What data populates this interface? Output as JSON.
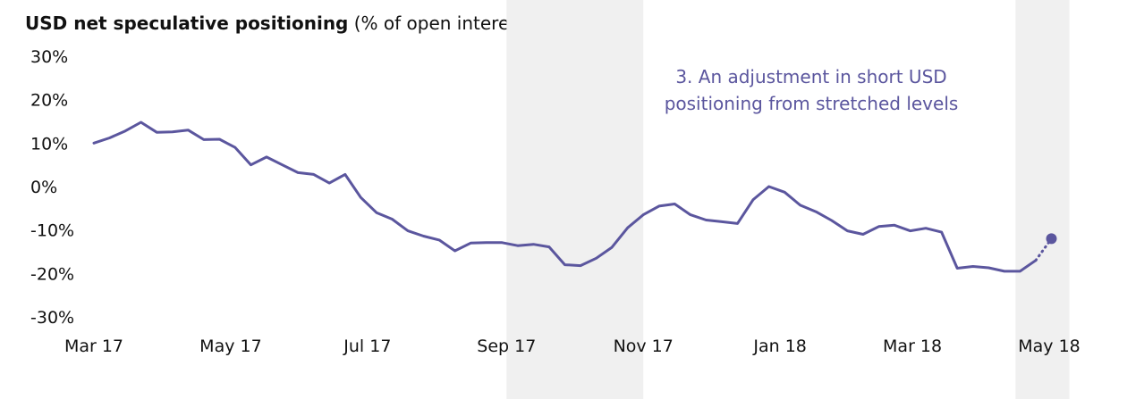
{
  "chart_data": {
    "type": "line",
    "title": "USD net speculative positioning",
    "subtitle": "(% of open interest)",
    "xlabel": "",
    "ylabel": "",
    "ylim": [
      -30,
      30
    ],
    "y_ticks": [
      "30%",
      "20%",
      "10%",
      "0%",
      "-10%",
      "-20%",
      "-30%"
    ],
    "x_ticks": [
      "Mar 17",
      "May 17",
      "Jul 17",
      "Sep 17",
      "Nov 17",
      "Jan 18",
      "Mar 18",
      "May 18"
    ],
    "grid": false,
    "shaded_periods": [
      {
        "start": "2017-09-01",
        "end": "2017-11-01"
      },
      {
        "start": "2018-04-16",
        "end": "2018-05-10"
      }
    ],
    "annotation": {
      "lines": [
        "3. An adjustment in short USD",
        "positioning from stretched levels"
      ]
    },
    "series": [
      {
        "values": [
          [
            "2017-03-01",
            10.0
          ],
          [
            "2017-03-08",
            11.2
          ],
          [
            "2017-03-15",
            12.8
          ],
          [
            "2017-03-22",
            14.8
          ],
          [
            "2017-03-29",
            12.5
          ],
          [
            "2017-04-05",
            12.6
          ],
          [
            "2017-04-12",
            13.0
          ],
          [
            "2017-04-19",
            10.8
          ],
          [
            "2017-04-26",
            10.9
          ],
          [
            "2017-05-03",
            9.0
          ],
          [
            "2017-05-10",
            5.0
          ],
          [
            "2017-05-17",
            6.8
          ],
          [
            "2017-05-24",
            5.0
          ],
          [
            "2017-05-31",
            3.2
          ],
          [
            "2017-06-07",
            2.8
          ],
          [
            "2017-06-14",
            0.8
          ],
          [
            "2017-06-21",
            2.8
          ],
          [
            "2017-06-28",
            -2.5
          ],
          [
            "2017-07-05",
            -6.0
          ],
          [
            "2017-07-12",
            -7.5
          ],
          [
            "2017-07-19",
            -10.2
          ],
          [
            "2017-07-26",
            -11.4
          ],
          [
            "2017-08-02",
            -12.3
          ],
          [
            "2017-08-09",
            -14.8
          ],
          [
            "2017-08-16",
            -13.0
          ],
          [
            "2017-08-23",
            -12.9
          ],
          [
            "2017-08-30",
            -12.9
          ],
          [
            "2017-09-06",
            -13.6
          ],
          [
            "2017-09-13",
            -13.3
          ],
          [
            "2017-09-20",
            -13.9
          ],
          [
            "2017-09-27",
            -18.0
          ],
          [
            "2017-10-04",
            -18.2
          ],
          [
            "2017-10-11",
            -16.5
          ],
          [
            "2017-10-18",
            -14.0
          ],
          [
            "2017-10-25",
            -9.5
          ],
          [
            "2017-11-01",
            -6.5
          ],
          [
            "2017-11-08",
            -4.5
          ],
          [
            "2017-11-15",
            -4.0
          ],
          [
            "2017-11-22",
            -6.5
          ],
          [
            "2017-11-29",
            -7.7
          ],
          [
            "2017-12-06",
            -8.1
          ],
          [
            "2017-12-13",
            -8.5
          ],
          [
            "2017-12-20",
            -3.0
          ],
          [
            "2017-12-27",
            0.0
          ],
          [
            "2018-01-03",
            -1.3
          ],
          [
            "2018-01-10",
            -4.3
          ],
          [
            "2018-01-17",
            -5.8
          ],
          [
            "2018-01-24",
            -7.8
          ],
          [
            "2018-01-31",
            -10.2
          ],
          [
            "2018-02-07",
            -11.0
          ],
          [
            "2018-02-14",
            -9.2
          ],
          [
            "2018-02-21",
            -8.9
          ],
          [
            "2018-02-28",
            -10.2
          ],
          [
            "2018-03-07",
            -9.6
          ],
          [
            "2018-03-14",
            -10.5
          ],
          [
            "2018-03-21",
            -18.8
          ],
          [
            "2018-03-28",
            -18.4
          ],
          [
            "2018-04-04",
            -18.7
          ],
          [
            "2018-04-11",
            -19.5
          ],
          [
            "2018-04-18",
            -19.5
          ],
          [
            "2018-04-25",
            -17.0
          ]
        ]
      },
      {
        "style": "dotted",
        "values": [
          [
            "2018-04-25",
            -17.0
          ],
          [
            "2018-05-02",
            -12.0
          ]
        ]
      }
    ],
    "end_marker": [
      "2018-05-02",
      -12.0
    ],
    "colors": {
      "line": "#5b569e",
      "shading": "#f0f0f0",
      "annotation": "#5b569e"
    }
  }
}
